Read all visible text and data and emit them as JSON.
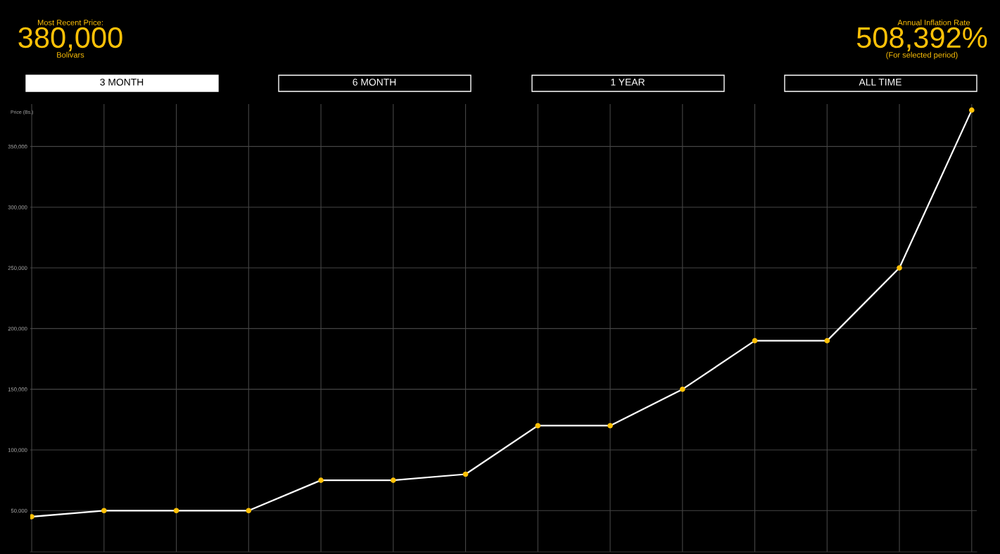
{
  "chart_data": {
    "type": "line",
    "categories": [
      null,
      null,
      null,
      null,
      null,
      null,
      null,
      null,
      null,
      null,
      null,
      null,
      null,
      null
    ],
    "series": [
      {
        "color": "#ffffff",
        "colors": [
          "#ffc107",
          "#ffc107",
          "#ffc107",
          "#ffc107",
          "#ffc107",
          "#ffc107",
          "#ffc107",
          "#ffc107",
          "#ffc107",
          "#ffc107",
          "#ffc107",
          "#ffc107",
          "#ffc107",
          "#ffc107"
        ],
        "values": [
          45000,
          50000,
          50000,
          50000,
          75000,
          75000,
          80000,
          120000,
          120000,
          150000,
          190000,
          190000,
          250000,
          380000
        ]
      }
    ],
    "ylabel": "Price (Bs.)",
    "ylim": [
      16000,
      385000
    ],
    "yticks": [
      {
        "value": 50000,
        "label": "50,000"
      },
      {
        "value": 100000,
        "label": "100,000"
      },
      {
        "value": 150000,
        "label": "150,000"
      },
      {
        "value": 200000,
        "label": "200,000"
      },
      {
        "value": 250000,
        "label": "250,000"
      },
      {
        "value": 300000,
        "label": "300,000"
      },
      {
        "value": 350000,
        "label": "350,000"
      }
    ],
    "grid": true,
    "marker": "circle",
    "line_style": "solid",
    "legend": false,
    "annotations": [
      "Most Recent Price:",
      "380,000",
      "Bolivars",
      "Annual Inflation Rate",
      "508,392%",
      "(For selected period)",
      "3 MONTH",
      "6 MONTH",
      "1 YEAR",
      "ALL TIME"
    ]
  }
}
